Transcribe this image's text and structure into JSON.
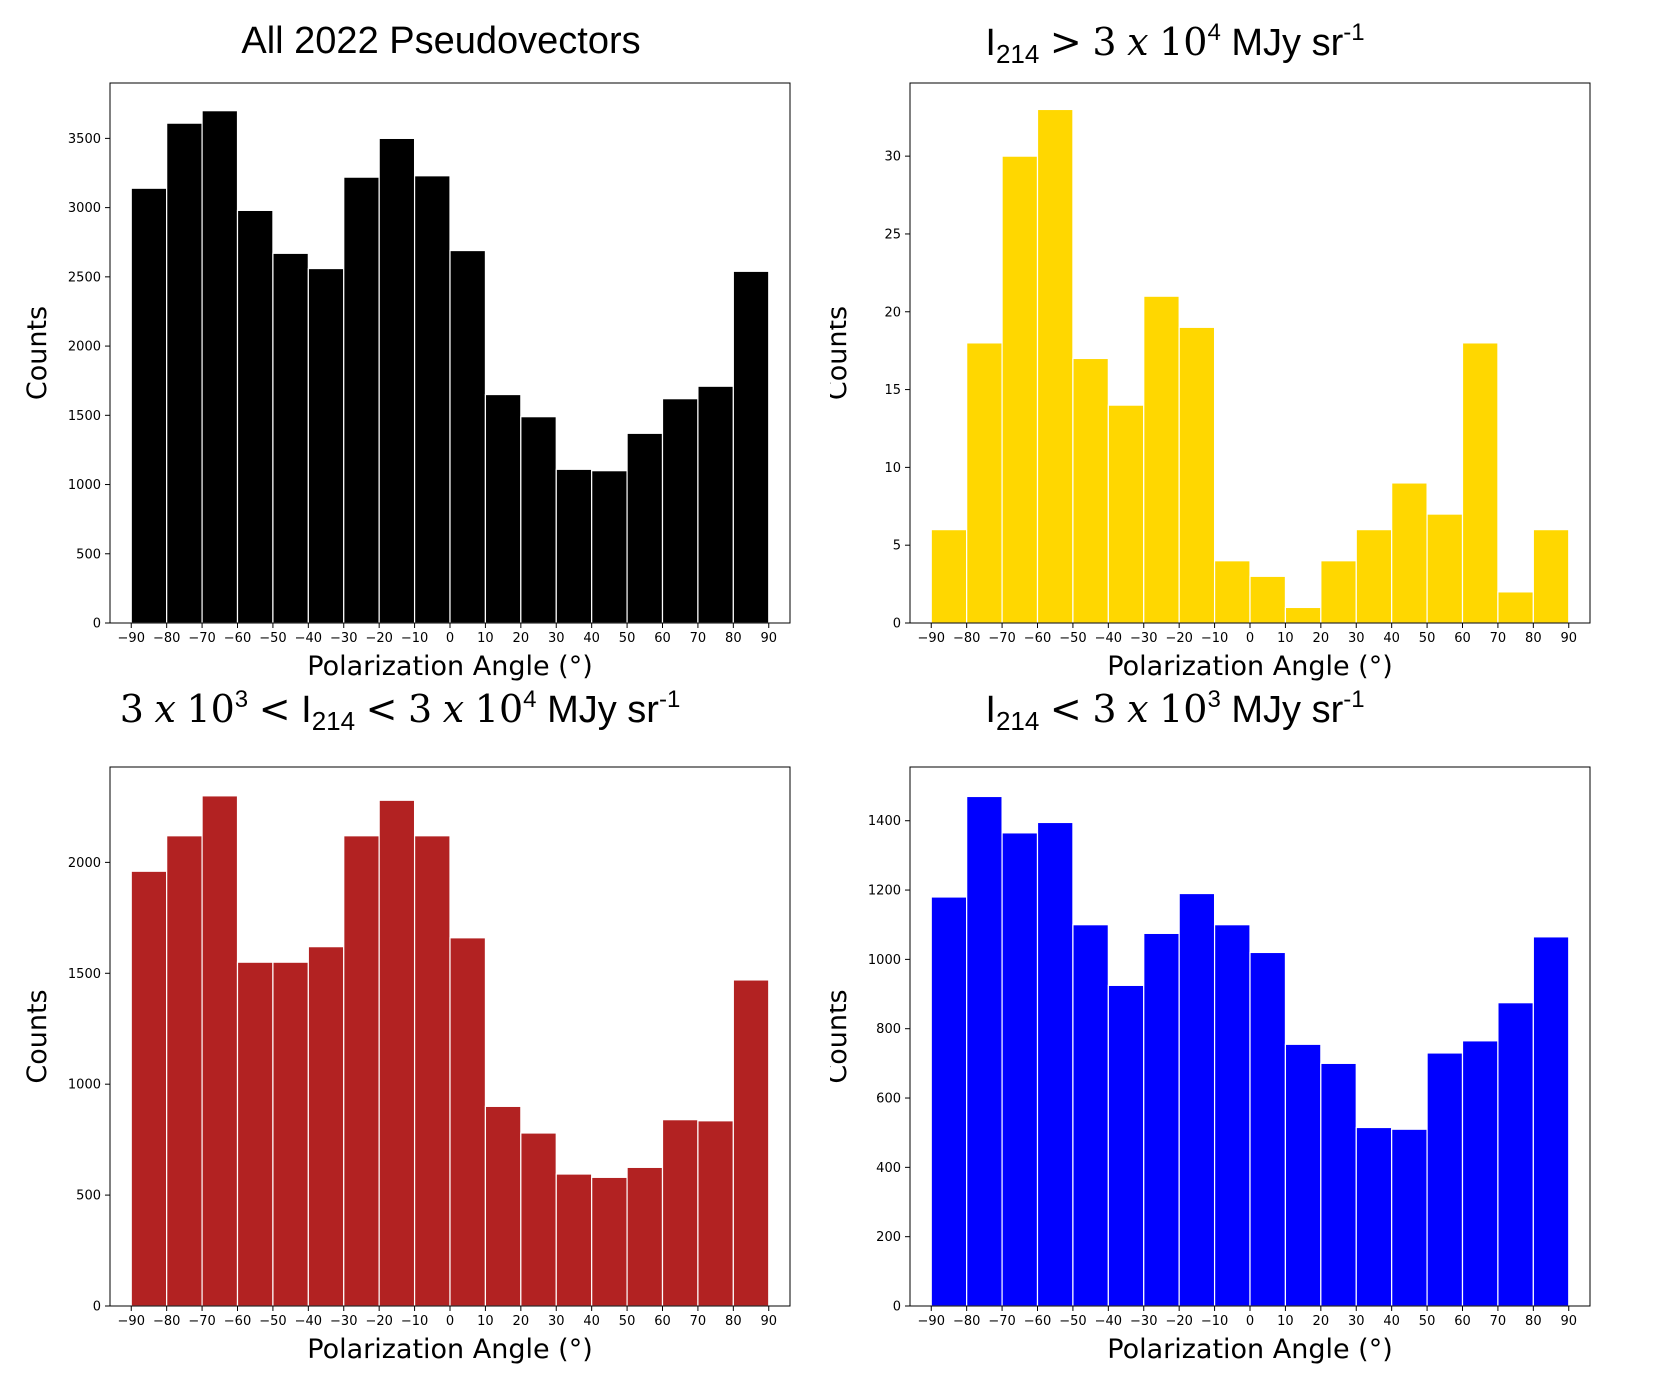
{
  "chart_data": [
    {
      "type": "bar",
      "panel": "top-left",
      "title": "All 2022 Pseudovectors",
      "color": "#000000",
      "xlabel": "Polarization Angle (°)",
      "ylabel": "Counts",
      "bin_edges": [
        -90,
        -80,
        -70,
        -60,
        -50,
        -40,
        -30,
        -20,
        -10,
        0,
        10,
        20,
        30,
        40,
        50,
        60,
        70,
        80,
        90
      ],
      "values": [
        3140,
        3610,
        3700,
        2980,
        2670,
        2560,
        3220,
        3500,
        3230,
        2690,
        1650,
        1490,
        1110,
        1100,
        1370,
        1620,
        1710,
        2540
      ],
      "ylim": [
        0,
        3900
      ],
      "xticks": [
        "−90",
        "−80",
        "−70",
        "−60",
        "−50",
        "−40",
        "−30",
        "−20",
        "−10",
        "0",
        "10",
        "20",
        "30",
        "40",
        "50",
        "60",
        "70",
        "80",
        "90"
      ],
      "yticks": [
        0,
        500,
        1000,
        1500,
        2000,
        2500,
        3000,
        3500
      ]
    },
    {
      "type": "bar",
      "panel": "top-right",
      "title_parts": {
        "sym": "I",
        "sub": "214",
        "op": ">",
        "coef": "3",
        "x": "x",
        "base": "10",
        "exp": "4",
        "unit": "MJy sr",
        "unit_exp": "-1"
      },
      "color": "#ffd700",
      "xlabel": "Polarization Angle (°)",
      "ylabel": "Counts",
      "bin_edges": [
        -90,
        -80,
        -70,
        -60,
        -50,
        -40,
        -30,
        -20,
        -10,
        0,
        10,
        20,
        30,
        40,
        50,
        60,
        70,
        80,
        90
      ],
      "values": [
        6,
        18,
        30,
        33,
        17,
        14,
        21,
        19,
        4,
        3,
        1,
        4,
        6,
        9,
        7,
        18,
        2,
        6
      ],
      "ylim": [
        0,
        34.7
      ],
      "xticks": [
        "−90",
        "−80",
        "−70",
        "−60",
        "−50",
        "−40",
        "−30",
        "−20",
        "−10",
        "0",
        "10",
        "20",
        "30",
        "40",
        "50",
        "60",
        "70",
        "80",
        "90"
      ],
      "yticks": [
        0,
        5,
        10,
        15,
        20,
        25,
        30
      ]
    },
    {
      "type": "bar",
      "panel": "bottom-left",
      "title_parts": {
        "coef1": "3",
        "x": "x",
        "base1": "10",
        "exp1": "3",
        "op": "<",
        "sym": "I",
        "sub": "214",
        "coef2": "3",
        "base2": "10",
        "exp2": "4",
        "unit": "MJy sr",
        "unit_exp": "-1"
      },
      "color": "#b22222",
      "xlabel": "Polarization Angle (°)",
      "ylabel": "Counts",
      "bin_edges": [
        -90,
        -80,
        -70,
        -60,
        -50,
        -40,
        -30,
        -20,
        -10,
        0,
        10,
        20,
        30,
        40,
        50,
        60,
        70,
        80,
        90
      ],
      "values": [
        1960,
        2120,
        2300,
        1550,
        1550,
        1620,
        2120,
        2280,
        2120,
        1660,
        900,
        780,
        595,
        580,
        625,
        840,
        835,
        1470
      ],
      "ylim": [
        0,
        2430
      ],
      "xticks": [
        "−90",
        "−80",
        "−70",
        "−60",
        "−50",
        "−40",
        "−30",
        "−20",
        "−10",
        "0",
        "10",
        "20",
        "30",
        "40",
        "50",
        "60",
        "70",
        "80",
        "90"
      ],
      "yticks": [
        0,
        500,
        1000,
        1500,
        2000
      ]
    },
    {
      "type": "bar",
      "panel": "bottom-right",
      "title_parts": {
        "sym": "I",
        "sub": "214",
        "op": "<",
        "coef": "3",
        "x": "x",
        "base": "10",
        "exp": "3",
        "unit": "MJy sr",
        "unit_exp": "-1"
      },
      "color": "#0000ff",
      "xlabel": "Polarization Angle (°)",
      "ylabel": "Counts",
      "bin_edges": [
        -90,
        -80,
        -70,
        -60,
        -50,
        -40,
        -30,
        -20,
        -10,
        0,
        10,
        20,
        30,
        40,
        50,
        60,
        70,
        80,
        90
      ],
      "values": [
        1180,
        1470,
        1365,
        1395,
        1100,
        925,
        1075,
        1190,
        1100,
        1020,
        755,
        700,
        515,
        510,
        730,
        765,
        875,
        1065
      ],
      "ylim": [
        0,
        1555
      ],
      "xticks": [
        "−90",
        "−80",
        "−70",
        "−60",
        "−50",
        "−40",
        "−30",
        "−20",
        "−10",
        "0",
        "10",
        "20",
        "30",
        "40",
        "50",
        "60",
        "70",
        "80",
        "90"
      ],
      "yticks": [
        0,
        200,
        400,
        600,
        800,
        1000,
        1200,
        1400
      ]
    }
  ]
}
